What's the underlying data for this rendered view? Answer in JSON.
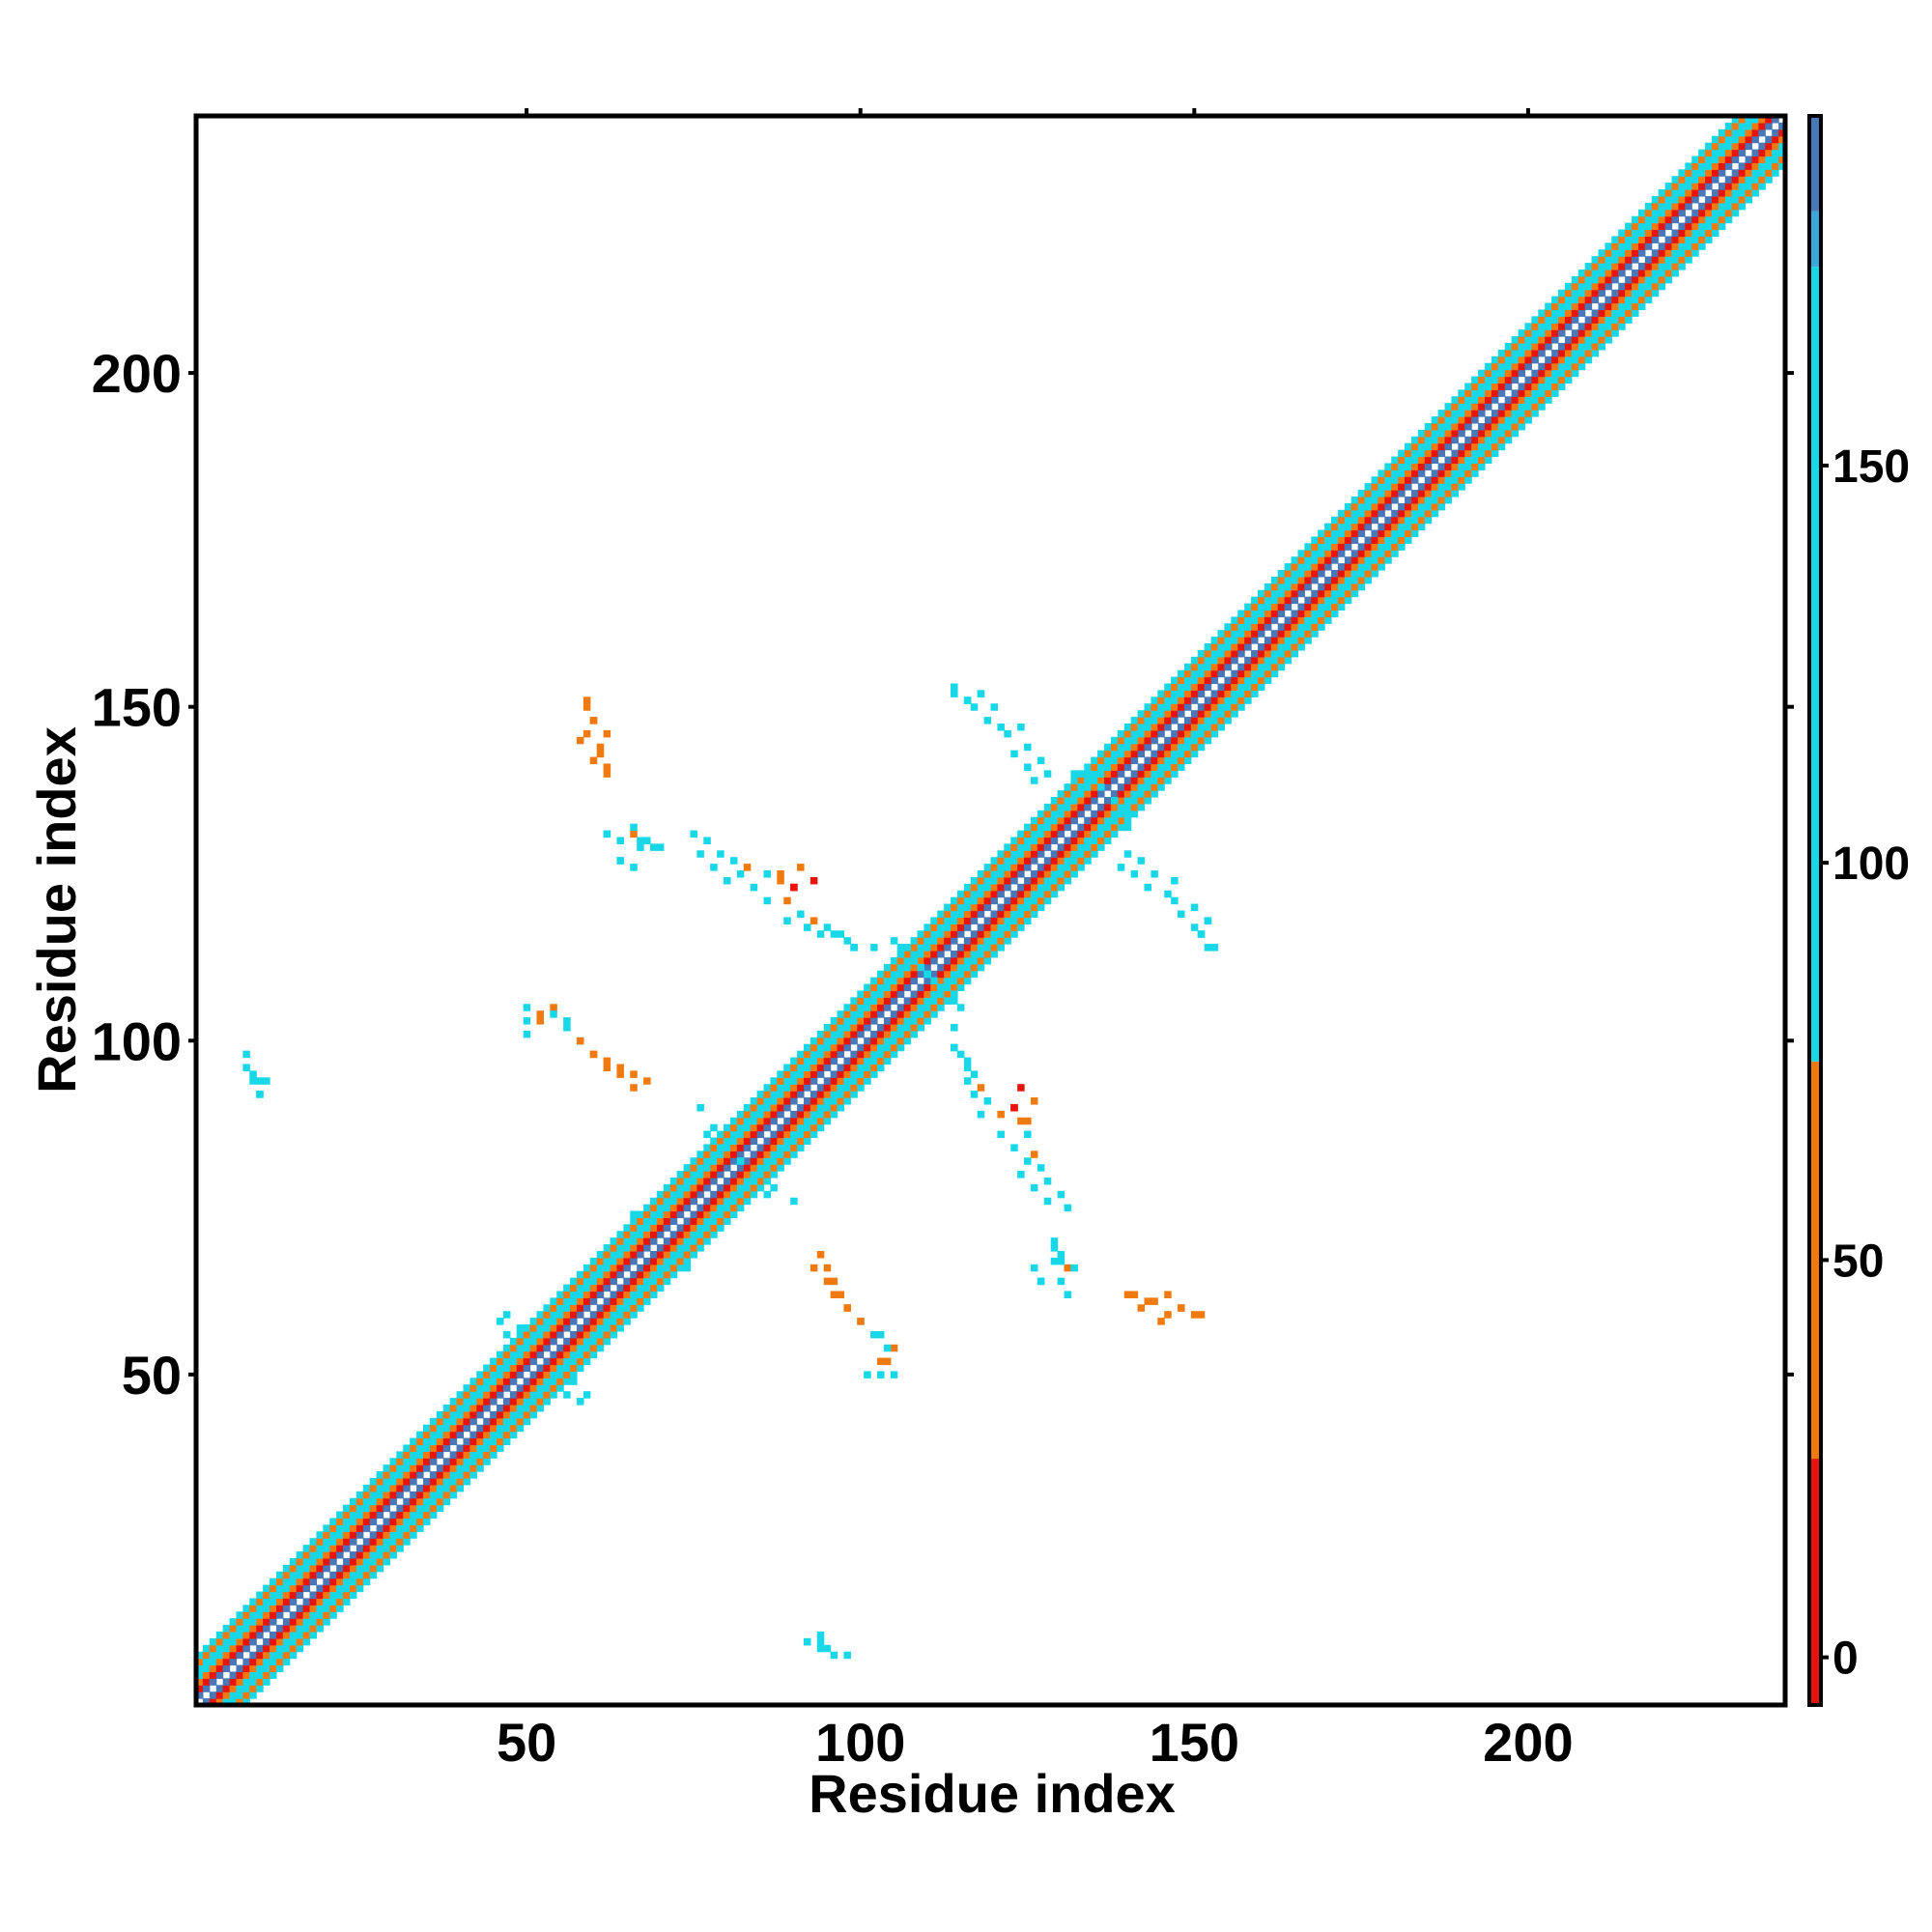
{
  "chart_data": {
    "type": "heatmap",
    "title": "",
    "xlabel": "Residue index",
    "ylabel": "Residue index",
    "xlim": [
      1,
      238
    ],
    "ylim": [
      1,
      238
    ],
    "xticks": [
      50,
      100,
      150,
      200
    ],
    "yticks": [
      50,
      100,
      150,
      200
    ],
    "colorbar": {
      "ticks": [
        0,
        50,
        100,
        150
      ],
      "range": [
        -6,
        194
      ],
      "bands": [
        {
          "from": -6,
          "to": 25,
          "color": "#e8140c"
        },
        {
          "from": 25,
          "to": 75,
          "color": "#f07a10"
        },
        {
          "from": 75,
          "to": 175,
          "color": "#18d8e8"
        },
        {
          "from": 175,
          "to": 182,
          "color": "#3aa8d8"
        },
        {
          "from": 182,
          "to": 194,
          "color": "#4878b8"
        }
      ]
    },
    "diagonal": {
      "from": 1,
      "to": 238,
      "bands": [
        {
          "offset": 1,
          "value": 190
        },
        {
          "offset": 2,
          "value": 10
        },
        {
          "offset": 3,
          "value": 45
        },
        {
          "offset": 4,
          "value": 90
        },
        {
          "offset": 5,
          "value": 95
        },
        {
          "offset": 6,
          "value": 45
        },
        {
          "offset": 7,
          "value": 120
        }
      ]
    },
    "off_diagonal_contacts": [
      {
        "x": 8,
        "y": 96,
        "value": 170
      },
      {
        "x": 9,
        "y": 94,
        "value": 160
      },
      {
        "x": 10,
        "y": 94,
        "value": 150
      },
      {
        "x": 10,
        "y": 92,
        "value": 170
      },
      {
        "x": 50,
        "y": 103,
        "value": 120
      },
      {
        "x": 52,
        "y": 104,
        "value": 60
      },
      {
        "x": 54,
        "y": 105,
        "value": 45
      },
      {
        "x": 56,
        "y": 103,
        "value": 110
      },
      {
        "x": 58,
        "y": 100,
        "value": 100
      },
      {
        "x": 60,
        "y": 98,
        "value": 60
      },
      {
        "x": 62,
        "y": 97,
        "value": 45
      },
      {
        "x": 64,
        "y": 96,
        "value": 55
      },
      {
        "x": 66,
        "y": 95,
        "value": 45
      },
      {
        "x": 68,
        "y": 94,
        "value": 60
      },
      {
        "x": 59,
        "y": 151,
        "value": 45
      },
      {
        "x": 60,
        "y": 148,
        "value": 55
      },
      {
        "x": 58,
        "y": 145,
        "value": 60
      },
      {
        "x": 62,
        "y": 146,
        "value": 45
      },
      {
        "x": 61,
        "y": 143,
        "value": 55
      },
      {
        "x": 62,
        "y": 141,
        "value": 45
      },
      {
        "x": 62,
        "y": 131,
        "value": 100
      },
      {
        "x": 64,
        "y": 130,
        "value": 110
      },
      {
        "x": 66,
        "y": 131,
        "value": 45
      },
      {
        "x": 67,
        "y": 129,
        "value": 100
      },
      {
        "x": 68,
        "y": 130,
        "value": 110
      },
      {
        "x": 70,
        "y": 129,
        "value": 100
      },
      {
        "x": 64,
        "y": 127,
        "value": 120
      },
      {
        "x": 66,
        "y": 126,
        "value": 100
      },
      {
        "x": 76,
        "y": 128,
        "value": 110
      },
      {
        "x": 78,
        "y": 126,
        "value": 100
      },
      {
        "x": 80,
        "y": 124,
        "value": 110
      },
      {
        "x": 82,
        "y": 125,
        "value": 120
      },
      {
        "x": 84,
        "y": 123,
        "value": 100
      },
      {
        "x": 86,
        "y": 121,
        "value": 110
      },
      {
        "x": 88,
        "y": 125,
        "value": 45
      },
      {
        "x": 90,
        "y": 123,
        "value": 10
      },
      {
        "x": 91,
        "y": 126,
        "value": 45
      },
      {
        "x": 93,
        "y": 124,
        "value": 10
      },
      {
        "x": 89,
        "y": 118,
        "value": 100
      },
      {
        "x": 92,
        "y": 117,
        "value": 170
      },
      {
        "x": 94,
        "y": 116,
        "value": 100
      },
      {
        "x": 96,
        "y": 116,
        "value": 110
      },
      {
        "x": 98,
        "y": 115,
        "value": 120
      },
      {
        "x": 99,
        "y": 114,
        "value": 100
      },
      {
        "x": 102,
        "y": 114,
        "value": 110
      },
      {
        "x": 114,
        "y": 152,
        "value": 120
      },
      {
        "x": 116,
        "y": 151,
        "value": 150
      },
      {
        "x": 118,
        "y": 152,
        "value": 100
      },
      {
        "x": 120,
        "y": 150,
        "value": 110
      },
      {
        "x": 121,
        "y": 147,
        "value": 100
      },
      {
        "x": 124,
        "y": 147,
        "value": 110
      },
      {
        "x": 125,
        "y": 144,
        "value": 100
      },
      {
        "x": 127,
        "y": 142,
        "value": 110
      },
      {
        "x": 128,
        "y": 140,
        "value": 100
      },
      {
        "x": 139,
        "y": 126,
        "value": 110
      },
      {
        "x": 141,
        "y": 125,
        "value": 100
      },
      {
        "x": 143,
        "y": 123,
        "value": 110
      },
      {
        "x": 146,
        "y": 122,
        "value": 100
      },
      {
        "x": 148,
        "y": 119,
        "value": 110
      },
      {
        "x": 150,
        "y": 117,
        "value": 120
      },
      {
        "x": 151,
        "y": 116,
        "value": 100
      },
      {
        "x": 153,
        "y": 114,
        "value": 150
      },
      {
        "x": 152,
        "y": 118,
        "value": 110
      },
      {
        "x": 114,
        "y": 99,
        "value": 100
      },
      {
        "x": 116,
        "y": 97,
        "value": 110
      },
      {
        "x": 117,
        "y": 95,
        "value": 100
      },
      {
        "x": 118,
        "y": 93,
        "value": 45
      },
      {
        "x": 119,
        "y": 91,
        "value": 110
      },
      {
        "x": 121,
        "y": 89,
        "value": 45
      },
      {
        "x": 123,
        "y": 90,
        "value": 10
      },
      {
        "x": 124,
        "y": 88,
        "value": 45
      },
      {
        "x": 125,
        "y": 86,
        "value": 100
      },
      {
        "x": 126,
        "y": 83,
        "value": 45
      },
      {
        "x": 127,
        "y": 81,
        "value": 110
      },
      {
        "x": 128,
        "y": 79,
        "value": 100
      },
      {
        "x": 130,
        "y": 77,
        "value": 110
      },
      {
        "x": 131,
        "y": 75,
        "value": 120
      },
      {
        "x": 129,
        "y": 69,
        "value": 100
      },
      {
        "x": 130,
        "y": 67,
        "value": 150
      },
      {
        "x": 132,
        "y": 66,
        "value": 110
      },
      {
        "x": 127,
        "y": 64,
        "value": 100
      },
      {
        "x": 131,
        "y": 62,
        "value": 120
      },
      {
        "x": 140,
        "y": 62,
        "value": 45
      },
      {
        "x": 142,
        "y": 60,
        "value": 55
      },
      {
        "x": 144,
        "y": 61,
        "value": 45
      },
      {
        "x": 146,
        "y": 59,
        "value": 60
      },
      {
        "x": 148,
        "y": 60,
        "value": 45
      },
      {
        "x": 150,
        "y": 59,
        "value": 55
      },
      {
        "x": 93,
        "y": 66,
        "value": 45
      },
      {
        "x": 95,
        "y": 64,
        "value": 60
      },
      {
        "x": 96,
        "y": 62,
        "value": 45
      },
      {
        "x": 98,
        "y": 60,
        "value": 55
      },
      {
        "x": 100,
        "y": 58,
        "value": 45
      },
      {
        "x": 102,
        "y": 56,
        "value": 100
      },
      {
        "x": 104,
        "y": 54,
        "value": 110
      },
      {
        "x": 103,
        "y": 52,
        "value": 55
      },
      {
        "x": 101,
        "y": 50,
        "value": 120
      },
      {
        "x": 105,
        "y": 50,
        "value": 100
      },
      {
        "x": 92,
        "y": 10,
        "value": 150
      },
      {
        "x": 94,
        "y": 11,
        "value": 100
      },
      {
        "x": 95,
        "y": 9,
        "value": 110
      },
      {
        "x": 98,
        "y": 8,
        "value": 150
      },
      {
        "x": 82,
        "y": 82,
        "value": 110
      },
      {
        "x": 84,
        "y": 79,
        "value": 100
      },
      {
        "x": 86,
        "y": 77,
        "value": 110
      },
      {
        "x": 78,
        "y": 87,
        "value": 100
      },
      {
        "x": 76,
        "y": 90,
        "value": 110
      },
      {
        "x": 66,
        "y": 74,
        "value": 100
      },
      {
        "x": 47,
        "y": 59,
        "value": 110
      },
      {
        "x": 49,
        "y": 57,
        "value": 120
      },
      {
        "x": 56,
        "y": 47,
        "value": 100
      },
      {
        "x": 58,
        "y": 46,
        "value": 110
      },
      {
        "x": 107,
        "y": 114,
        "value": 160
      },
      {
        "x": 108,
        "y": 112,
        "value": 170
      },
      {
        "x": 110,
        "y": 110,
        "value": 160
      },
      {
        "x": 112,
        "y": 108,
        "value": 170
      },
      {
        "x": 114,
        "y": 106,
        "value": 160
      },
      {
        "x": 106,
        "y": 113,
        "value": 170
      },
      {
        "x": 115,
        "y": 105,
        "value": 160
      },
      {
        "x": 109,
        "y": 111,
        "value": 170
      },
      {
        "x": 136,
        "y": 138,
        "value": 110
      },
      {
        "x": 134,
        "y": 140,
        "value": 100
      },
      {
        "x": 138,
        "y": 133,
        "value": 110
      },
      {
        "x": 140,
        "y": 132,
        "value": 100
      }
    ]
  }
}
